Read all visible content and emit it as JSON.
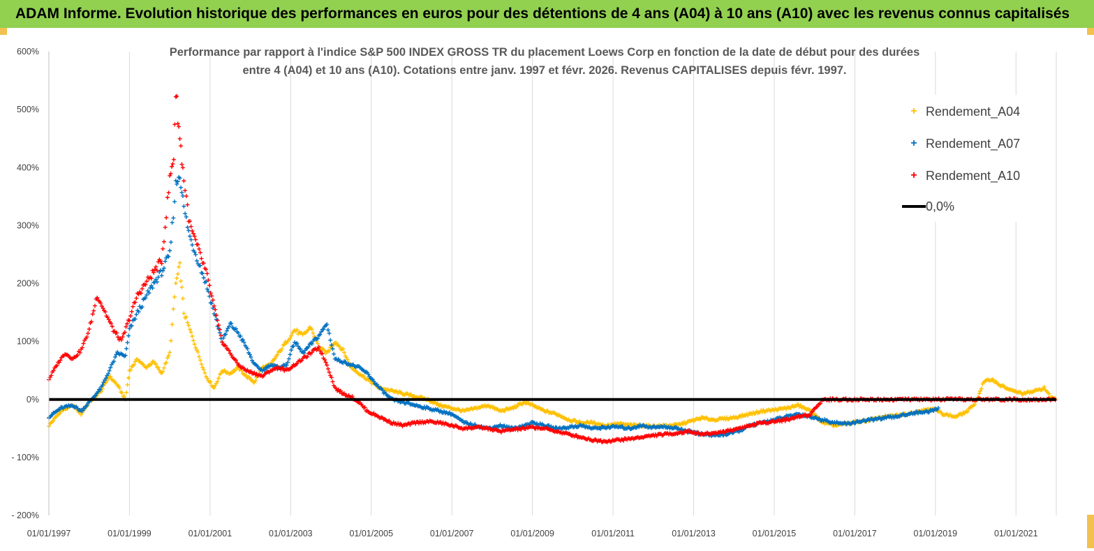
{
  "header": {
    "banner_title": "ADAM Informe. Evolution historique des performances en euros pour des détentions de 4 ans (A04) à 10 ans (A10) avec les revenus connus capitalisés"
  },
  "colors": {
    "banner_bg": "#92d050",
    "A04": "#ffc000",
    "A07": "#0070c0",
    "A10": "#ff0000",
    "zero_line": "#000000",
    "grid": "#d9d9d9"
  },
  "chart_data": {
    "type": "scatter",
    "title_line1": "Performance par rapport à l'indice S&P 500 INDEX GROSS TR  du placement Loews Corp en fonction de la date de début pour des durées",
    "title_line2": "entre 4 (A04) et 10 ans (A10). Cotations entre janv. 1997 et févr. 2026. Revenus CAPITALISES depuis févr. 1997.",
    "x_axis": {
      "min": 1997.0,
      "max": 2022.0,
      "tick_labels": [
        "01/01/1997",
        "01/01/1999",
        "01/01/2001",
        "01/01/2003",
        "01/01/2005",
        "01/01/2007",
        "01/01/2009",
        "01/01/2011",
        "01/01/2013",
        "01/01/2015",
        "01/01/2017",
        "01/01/2019",
        "01/01/2021"
      ],
      "tick_values": [
        1997,
        1999,
        2001,
        2003,
        2005,
        2007,
        2009,
        2011,
        2013,
        2015,
        2017,
        2019,
        2021
      ]
    },
    "y_axis": {
      "min": -200,
      "max": 600,
      "tick_values": [
        600,
        500,
        400,
        300,
        200,
        100,
        0,
        -100,
        -200
      ],
      "tick_labels": [
        "600%",
        "500%",
        "400%",
        "300%",
        "200%",
        "100%",
        "0%",
        "- 100%",
        "- 200%"
      ]
    },
    "grid": "vertical",
    "legend_position": "top-right",
    "legend": [
      {
        "key": "A04",
        "label": "Rendement_A04"
      },
      {
        "key": "A07",
        "label": "Rendement_A07"
      },
      {
        "key": "A10",
        "label": "Rendement_A10"
      },
      {
        "key": "zero",
        "label": "0,0%"
      }
    ],
    "series": [
      {
        "name": "Rendement_A04",
        "key": "A04",
        "x": [
          1997.0,
          1997.3,
          1997.6,
          1997.8,
          1998.0,
          1998.3,
          1998.5,
          1998.7,
          1998.9,
          1999.0,
          1999.2,
          1999.4,
          1999.6,
          1999.8,
          2000.0,
          2000.15,
          2000.25,
          2000.35,
          2000.5,
          2000.7,
          2000.9,
          2001.1,
          2001.3,
          2001.5,
          2001.7,
          2001.9,
          2002.1,
          2002.3,
          2002.5,
          2002.7,
          2002.9,
          2003.1,
          2003.3,
          2003.5,
          2003.7,
          2003.9,
          2004.1,
          2004.3,
          2004.5,
          2004.7,
          2004.9,
          2005.2,
          2005.5,
          2005.8,
          2006.1,
          2006.4,
          2006.7,
          2007.0,
          2007.3,
          2007.6,
          2007.9,
          2008.2,
          2008.5,
          2008.8,
          2009.0,
          2009.3,
          2009.6,
          2009.9,
          2010.2,
          2010.5,
          2010.8,
          2011.1,
          2011.4,
          2011.7,
          2012.0,
          2012.3,
          2012.6,
          2012.9,
          2013.2,
          2013.5,
          2013.8,
          2014.1,
          2014.4,
          2014.7,
          2015.0,
          2015.3,
          2015.6,
          2015.9,
          2016.2,
          2016.5,
          2016.8,
          2017.1,
          2017.4,
          2017.7,
          2018.0,
          2018.3,
          2018.6,
          2018.9,
          2019.2,
          2019.5,
          2019.8,
          2020.0,
          2020.2,
          2020.4,
          2020.6,
          2020.9,
          2021.2,
          2021.5,
          2021.7,
          2021.85,
          2022.0
        ],
        "values": [
          -45,
          -20,
          -10,
          -25,
          -5,
          15,
          40,
          25,
          0,
          50,
          70,
          55,
          65,
          45,
          80,
          200,
          230,
          150,
          120,
          80,
          40,
          20,
          50,
          45,
          55,
          40,
          30,
          55,
          60,
          80,
          100,
          120,
          110,
          125,
          90,
          80,
          100,
          85,
          55,
          45,
          35,
          20,
          15,
          10,
          5,
          0,
          -10,
          -15,
          -20,
          -15,
          -10,
          -20,
          -15,
          -5,
          -10,
          -20,
          -25,
          -35,
          -40,
          -40,
          -45,
          -42,
          -44,
          -45,
          -46,
          -45,
          -44,
          -38,
          -32,
          -35,
          -33,
          -30,
          -25,
          -20,
          -18,
          -15,
          -10,
          -20,
          -40,
          -45,
          -42,
          -38,
          -35,
          -30,
          -28,
          -25,
          -20,
          -15,
          -25,
          -30,
          -20,
          -5,
          30,
          35,
          25,
          15,
          10,
          15,
          20,
          5,
          0
        ]
      },
      {
        "name": "Rendement_A07",
        "key": "A07",
        "x": [
          1997.0,
          1997.3,
          1997.6,
          1997.8,
          1998.0,
          1998.3,
          1998.5,
          1998.7,
          1998.9,
          1999.0,
          1999.2,
          1999.4,
          1999.6,
          1999.8,
          2000.0,
          2000.15,
          2000.25,
          2000.35,
          2000.5,
          2000.7,
          2000.9,
          2001.1,
          2001.3,
          2001.5,
          2001.7,
          2001.9,
          2002.1,
          2002.3,
          2002.5,
          2002.7,
          2002.9,
          2003.1,
          2003.3,
          2003.5,
          2003.7,
          2003.9,
          2004.1,
          2004.3,
          2004.5,
          2004.7,
          2004.9,
          2005.2,
          2005.5,
          2005.8,
          2006.1,
          2006.4,
          2006.7,
          2007.0,
          2007.3,
          2007.6,
          2007.9,
          2008.2,
          2008.5,
          2008.8,
          2009.0,
          2009.3,
          2009.6,
          2009.9,
          2010.2,
          2010.5,
          2010.8,
          2011.1,
          2011.4,
          2011.7,
          2012.0,
          2012.3,
          2012.6,
          2012.9,
          2013.2,
          2013.5,
          2013.8,
          2014.1,
          2014.4,
          2014.7,
          2015.0,
          2015.3,
          2015.6,
          2015.9,
          2016.2,
          2016.5,
          2016.8,
          2017.1,
          2017.4,
          2017.7,
          2018.0,
          2018.3,
          2018.6,
          2018.9,
          2019.1
        ],
        "values": [
          -30,
          -15,
          -10,
          -20,
          -5,
          20,
          50,
          80,
          75,
          120,
          150,
          175,
          200,
          220,
          250,
          370,
          390,
          330,
          280,
          240,
          200,
          150,
          100,
          130,
          115,
          90,
          60,
          50,
          60,
          55,
          60,
          100,
          80,
          95,
          110,
          130,
          70,
          65,
          60,
          55,
          45,
          20,
          0,
          -5,
          -10,
          -15,
          -20,
          -25,
          -40,
          -45,
          -50,
          -45,
          -50,
          -45,
          -40,
          -45,
          -50,
          -48,
          -45,
          -50,
          -48,
          -47,
          -50,
          -45,
          -48,
          -47,
          -50,
          -55,
          -60,
          -62,
          -60,
          -55,
          -45,
          -40,
          -35,
          -30,
          -25,
          -30,
          -35,
          -40,
          -42,
          -38,
          -35,
          -32,
          -30,
          -25,
          -22,
          -20,
          -15
        ]
      },
      {
        "name": "Rendement_A10",
        "key": "A10",
        "x": [
          1997.0,
          1997.2,
          1997.4,
          1997.6,
          1997.8,
          1998.0,
          1998.2,
          1998.4,
          1998.6,
          1998.8,
          1999.0,
          1999.2,
          1999.4,
          1999.6,
          1999.8,
          2000.0,
          2000.1,
          2000.15,
          2000.25,
          2000.35,
          2000.5,
          2000.7,
          2000.9,
          2001.1,
          2001.3,
          2001.5,
          2001.7,
          2001.9,
          2002.1,
          2002.3,
          2002.5,
          2002.7,
          2002.9,
          2003.1,
          2003.3,
          2003.5,
          2003.7,
          2003.9,
          2004.1,
          2004.3,
          2004.5,
          2004.7,
          2004.9,
          2005.2,
          2005.5,
          2005.8,
          2006.1,
          2006.4,
          2006.7,
          2007.0,
          2007.3,
          2007.6,
          2007.9,
          2008.2,
          2008.5,
          2008.8,
          2009.0,
          2009.3,
          2009.6,
          2009.9,
          2010.2,
          2010.5,
          2010.8,
          2011.1,
          2011.4,
          2011.7,
          2012.0,
          2012.3,
          2012.6,
          2012.9,
          2013.2,
          2013.5,
          2013.8,
          2014.1,
          2014.4,
          2014.7,
          2015.0,
          2015.3,
          2015.6,
          2015.9,
          2016.2,
          2016.5,
          2017.0,
          2017.5,
          2018.0,
          2018.5,
          2019.0,
          2019.5,
          2020.0,
          2020.5,
          2021.0,
          2021.5,
          2022.0
        ],
        "values": [
          35,
          60,
          80,
          70,
          85,
          120,
          180,
          150,
          120,
          100,
          140,
          180,
          200,
          220,
          240,
          380,
          420,
          530,
          450,
          380,
          300,
          260,
          220,
          160,
          100,
          80,
          60,
          50,
          45,
          40,
          50,
          55,
          50,
          60,
          70,
          80,
          90,
          60,
          20,
          10,
          5,
          -5,
          -20,
          -30,
          -40,
          -45,
          -40,
          -38,
          -40,
          -45,
          -50,
          -48,
          -50,
          -55,
          -52,
          -50,
          -48,
          -50,
          -55,
          -60,
          -65,
          -70,
          -72,
          -70,
          -68,
          -65,
          -62,
          -60,
          -58,
          -55,
          -60,
          -58,
          -55,
          -50,
          -45,
          -40,
          -38,
          -35,
          -30,
          -25,
          0,
          0,
          0,
          0,
          0,
          0,
          0,
          0,
          0,
          0,
          0,
          0,
          0
        ]
      }
    ],
    "reference_line": {
      "name": "0,0%",
      "value": 0
    }
  }
}
